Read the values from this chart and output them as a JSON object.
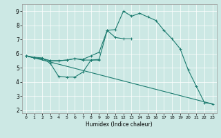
{
  "title": "",
  "xlabel": "Humidex (Indice chaleur)",
  "xlim": [
    -0.5,
    23.5
  ],
  "ylim": [
    1.8,
    9.5
  ],
  "xticks": [
    0,
    1,
    2,
    3,
    4,
    5,
    6,
    7,
    8,
    9,
    10,
    11,
    12,
    13,
    14,
    15,
    16,
    17,
    18,
    19,
    20,
    21,
    22,
    23
  ],
  "yticks": [
    2,
    3,
    4,
    5,
    6,
    7,
    8,
    9
  ],
  "bg_color": "#cce8e4",
  "line_color": "#1a7a6e",
  "lines": [
    {
      "x": [
        0,
        1,
        2,
        3,
        4,
        5,
        6,
        7,
        8,
        9
      ],
      "y": [
        5.85,
        5.75,
        5.7,
        5.3,
        4.4,
        4.35,
        4.35,
        4.7,
        5.55,
        5.55
      ],
      "marker": true
    },
    {
      "x": [
        0,
        1,
        2,
        3,
        4,
        5,
        6,
        7,
        8,
        9,
        10,
        11,
        12,
        13
      ],
      "y": [
        5.85,
        5.7,
        5.65,
        5.5,
        5.5,
        5.55,
        5.65,
        5.55,
        5.55,
        5.6,
        7.65,
        7.15,
        7.05,
        7.05
      ],
      "marker": true
    },
    {
      "x": [
        0,
        1,
        2,
        3,
        4,
        5,
        6,
        7,
        8,
        9,
        10,
        11,
        12,
        13,
        14,
        15,
        16,
        17,
        18,
        19,
        20,
        21,
        22,
        23
      ],
      "y": [
        5.85,
        5.7,
        5.65,
        5.5,
        5.5,
        5.55,
        5.65,
        5.6,
        5.85,
        6.1,
        7.65,
        7.7,
        9.0,
        8.65,
        8.85,
        8.6,
        8.35,
        7.65,
        7.05,
        6.35,
        4.85,
        3.7,
        2.55,
        2.45
      ],
      "marker": true
    },
    {
      "x": [
        0,
        23
      ],
      "y": [
        5.85,
        2.45
      ],
      "marker": false
    }
  ]
}
